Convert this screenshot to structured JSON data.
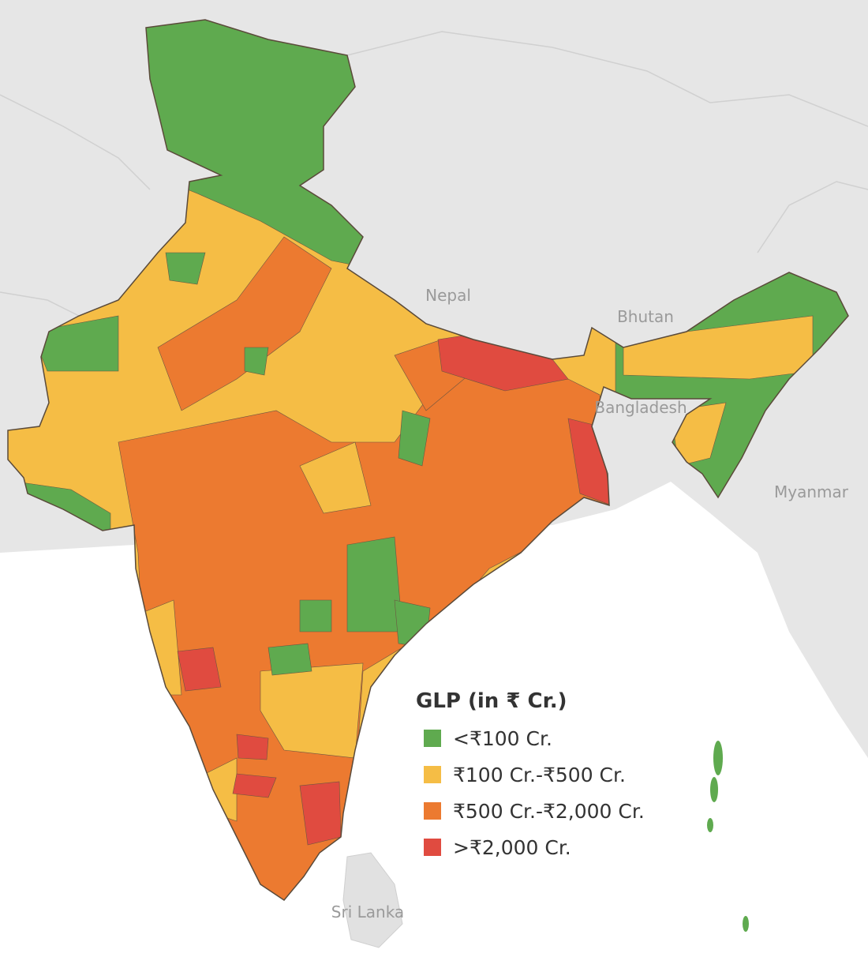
{
  "map_labels": [
    "Nepal",
    "Bhutan",
    "Bangladesh",
    "Myanmar",
    "Sri Lanka"
  ],
  "legend": {
    "title": "GLP (in ₹ Cr.)",
    "items": [
      {
        "label": "<₹100 Cr.",
        "color": "#5faa4f"
      },
      {
        "label": "₹100 Cr.-₹500 Cr.",
        "color": "#f5bd45"
      },
      {
        "label": "₹500 Cr.-₹2,000 Cr.",
        "color": "#ec7a30"
      },
      {
        "label": ">₹2,000 Cr.",
        "color": "#e04b40"
      }
    ]
  }
}
